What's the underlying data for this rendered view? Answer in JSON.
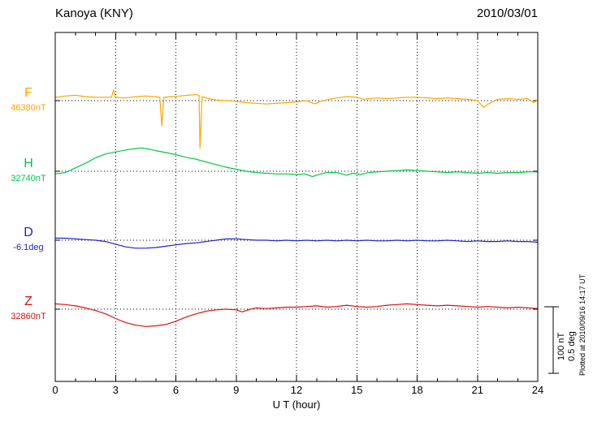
{
  "header": {
    "title": "Kanoya (KNY)",
    "date": "2010/03/01"
  },
  "axis": {
    "xlabel": "U T (hour)",
    "x_ticks": [
      0,
      3,
      6,
      9,
      12,
      15,
      18,
      21,
      24
    ],
    "x_minor_step": 1,
    "x_range": [
      0,
      24
    ]
  },
  "scale_bar": {
    "nt_label": "100 nT",
    "deg_label": "0.5 deg",
    "nT": 100,
    "deg": 0.5
  },
  "side_note": "Plotted at 2010/09/16 14:17 UT",
  "chart_data": {
    "type": "line",
    "station": "Kanoya (KNY)",
    "date": "2010/03/01",
    "x_unit": "hour",
    "x_range": [
      0,
      24
    ],
    "grid": "dotted-vertical-every-3h",
    "series": [
      {
        "name": "F",
        "baseline_label": "46380nT",
        "baseline_value": 46380,
        "unit": "nT",
        "color": "#FFA500",
        "points": [
          [
            0,
            5
          ],
          [
            0.5,
            7
          ],
          [
            1,
            8
          ],
          [
            1.5,
            6
          ],
          [
            2,
            5
          ],
          [
            2.5,
            5
          ],
          [
            2.8,
            5
          ],
          [
            2.9,
            16
          ],
          [
            3.0,
            5
          ],
          [
            3.5,
            4
          ],
          [
            4,
            6
          ],
          [
            4.5,
            7
          ],
          [
            5,
            6
          ],
          [
            5.2,
            5
          ],
          [
            5.3,
            -38
          ],
          [
            5.4,
            5
          ],
          [
            5.8,
            6
          ],
          [
            6.2,
            7
          ],
          [
            6.6,
            8
          ],
          [
            7.0,
            9
          ],
          [
            7.15,
            8
          ],
          [
            7.2,
            -72
          ],
          [
            7.3,
            6
          ],
          [
            7.6,
            3
          ],
          [
            8,
            1
          ],
          [
            8.5,
            0
          ],
          [
            9,
            -1
          ],
          [
            9.5,
            -3
          ],
          [
            10,
            -4
          ],
          [
            10.5,
            -5
          ],
          [
            11,
            -4
          ],
          [
            11.5,
            -3
          ],
          [
            12,
            -2
          ],
          [
            12.5,
            0
          ],
          [
            12.9,
            -5
          ],
          [
            13.2,
            -1
          ],
          [
            13.6,
            2
          ],
          [
            14,
            4
          ],
          [
            14.5,
            6
          ],
          [
            15,
            5
          ],
          [
            15.3,
            2
          ],
          [
            15.7,
            3
          ],
          [
            16,
            4
          ],
          [
            16.5,
            3
          ],
          [
            17,
            4
          ],
          [
            17.5,
            5
          ],
          [
            18,
            5
          ],
          [
            18.5,
            4
          ],
          [
            19,
            3
          ],
          [
            19.5,
            4
          ],
          [
            20,
            3
          ],
          [
            20.5,
            2
          ],
          [
            21,
            0
          ],
          [
            21.3,
            -10
          ],
          [
            21.6,
            -4
          ],
          [
            22,
            2
          ],
          [
            22.5,
            3
          ],
          [
            23,
            2
          ],
          [
            23.5,
            3
          ],
          [
            23.8,
            -3
          ],
          [
            24,
            1
          ]
        ]
      },
      {
        "name": "H",
        "baseline_label": "32740nT",
        "baseline_value": 32740,
        "unit": "nT",
        "color": "#00C840",
        "points": [
          [
            0,
            -4
          ],
          [
            0.5,
            -2
          ],
          [
            1,
            5
          ],
          [
            1.5,
            12
          ],
          [
            2,
            20
          ],
          [
            2.5,
            26
          ],
          [
            3,
            29
          ],
          [
            3.5,
            32
          ],
          [
            4,
            34
          ],
          [
            4.3,
            35
          ],
          [
            4.7,
            33
          ],
          [
            5,
            31
          ],
          [
            5.5,
            28
          ],
          [
            6,
            25
          ],
          [
            6.5,
            21
          ],
          [
            7,
            18
          ],
          [
            7.5,
            14
          ],
          [
            8,
            10
          ],
          [
            8.5,
            6
          ],
          [
            9,
            3
          ],
          [
            9.5,
            0
          ],
          [
            10,
            -2
          ],
          [
            10.5,
            -3
          ],
          [
            11,
            -4
          ],
          [
            11.5,
            -4
          ],
          [
            12,
            -5
          ],
          [
            12.4,
            -4
          ],
          [
            12.8,
            -8
          ],
          [
            13.1,
            -5
          ],
          [
            13.5,
            -2
          ],
          [
            14,
            -2
          ],
          [
            14.5,
            -6
          ],
          [
            14.8,
            -3
          ],
          [
            15.2,
            -5
          ],
          [
            15.6,
            -2
          ],
          [
            16,
            -1
          ],
          [
            16.5,
            0
          ],
          [
            17,
            1
          ],
          [
            17.5,
            2
          ],
          [
            18,
            1
          ],
          [
            18.5,
            0
          ],
          [
            19,
            -1
          ],
          [
            19.5,
            -2
          ],
          [
            20,
            -1
          ],
          [
            20.5,
            -2
          ],
          [
            21,
            -3
          ],
          [
            21.5,
            -2
          ],
          [
            22,
            -3
          ],
          [
            22.5,
            -2
          ],
          [
            23,
            -2
          ],
          [
            23.5,
            -1
          ],
          [
            24,
            -1
          ]
        ]
      },
      {
        "name": "D",
        "baseline_label": "-6.1deg",
        "baseline_value": -6.1,
        "unit": "deg",
        "color": "#2222CC",
        "points": [
          [
            0,
            0.015
          ],
          [
            0.5,
            0.015
          ],
          [
            1,
            0.01
          ],
          [
            1.5,
            0.005
          ],
          [
            2,
            0
          ],
          [
            2.5,
            -0.01
          ],
          [
            3,
            -0.03
          ],
          [
            3.5,
            -0.05
          ],
          [
            4,
            -0.06
          ],
          [
            4.5,
            -0.06
          ],
          [
            5,
            -0.055
          ],
          [
            5.5,
            -0.045
          ],
          [
            6,
            -0.035
          ],
          [
            6.5,
            -0.025
          ],
          [
            7,
            -0.02
          ],
          [
            7.5,
            -0.01
          ],
          [
            8,
            0
          ],
          [
            8.5,
            0.01
          ],
          [
            9,
            0.01
          ],
          [
            9.5,
            0.005
          ],
          [
            10,
            0
          ],
          [
            10.5,
            0
          ],
          [
            11,
            -0.005
          ],
          [
            11.5,
            0
          ],
          [
            12,
            -0.005
          ],
          [
            12.5,
            0
          ],
          [
            13,
            -0.005
          ],
          [
            13.5,
            0
          ],
          [
            14,
            -0.005
          ],
          [
            14.5,
            0
          ],
          [
            15,
            -0.005
          ],
          [
            15.5,
            0
          ],
          [
            16,
            -0.005
          ],
          [
            16.5,
            -0.005
          ],
          [
            17,
            0
          ],
          [
            17.5,
            -0.005
          ],
          [
            18,
            0
          ],
          [
            18.5,
            -0.005
          ],
          [
            19,
            -0.005
          ],
          [
            19.5,
            0
          ],
          [
            20,
            -0.005
          ],
          [
            20.5,
            -0.01
          ],
          [
            21,
            -0.005
          ],
          [
            21.5,
            -0.01
          ],
          [
            22,
            -0.01
          ],
          [
            22.5,
            -0.005
          ],
          [
            23,
            -0.01
          ],
          [
            23.5,
            -0.01
          ],
          [
            24,
            -0.015
          ]
        ]
      },
      {
        "name": "Z",
        "baseline_label": "32860nT",
        "baseline_value": 32860,
        "unit": "nT",
        "color": "#E01010",
        "points": [
          [
            0,
            8
          ],
          [
            0.5,
            7
          ],
          [
            1,
            5
          ],
          [
            1.5,
            2
          ],
          [
            2,
            -2
          ],
          [
            2.5,
            -7
          ],
          [
            3,
            -14
          ],
          [
            3.5,
            -20
          ],
          [
            4,
            -24
          ],
          [
            4.5,
            -26
          ],
          [
            5,
            -25
          ],
          [
            5.5,
            -23
          ],
          [
            6,
            -18
          ],
          [
            6.5,
            -12
          ],
          [
            7,
            -7
          ],
          [
            7.5,
            -3
          ],
          [
            8,
            -1
          ],
          [
            8.5,
            0
          ],
          [
            9,
            -1
          ],
          [
            9.3,
            -4
          ],
          [
            9.7,
            0
          ],
          [
            10,
            2
          ],
          [
            10.5,
            1
          ],
          [
            11,
            2
          ],
          [
            11.5,
            3
          ],
          [
            12,
            3
          ],
          [
            12.5,
            4
          ],
          [
            13,
            5
          ],
          [
            13.5,
            3
          ],
          [
            14,
            4
          ],
          [
            14.5,
            6
          ],
          [
            15,
            4
          ],
          [
            15.5,
            3
          ],
          [
            16,
            4
          ],
          [
            16.5,
            6
          ],
          [
            17,
            7
          ],
          [
            17.5,
            8
          ],
          [
            18,
            7
          ],
          [
            18.5,
            6
          ],
          [
            19,
            5
          ],
          [
            19.5,
            6
          ],
          [
            20,
            5
          ],
          [
            20.5,
            4
          ],
          [
            21,
            3
          ],
          [
            21.5,
            4
          ],
          [
            22,
            3
          ],
          [
            22.5,
            2
          ],
          [
            23,
            3
          ],
          [
            23.5,
            2
          ],
          [
            24,
            1
          ]
        ]
      }
    ]
  }
}
